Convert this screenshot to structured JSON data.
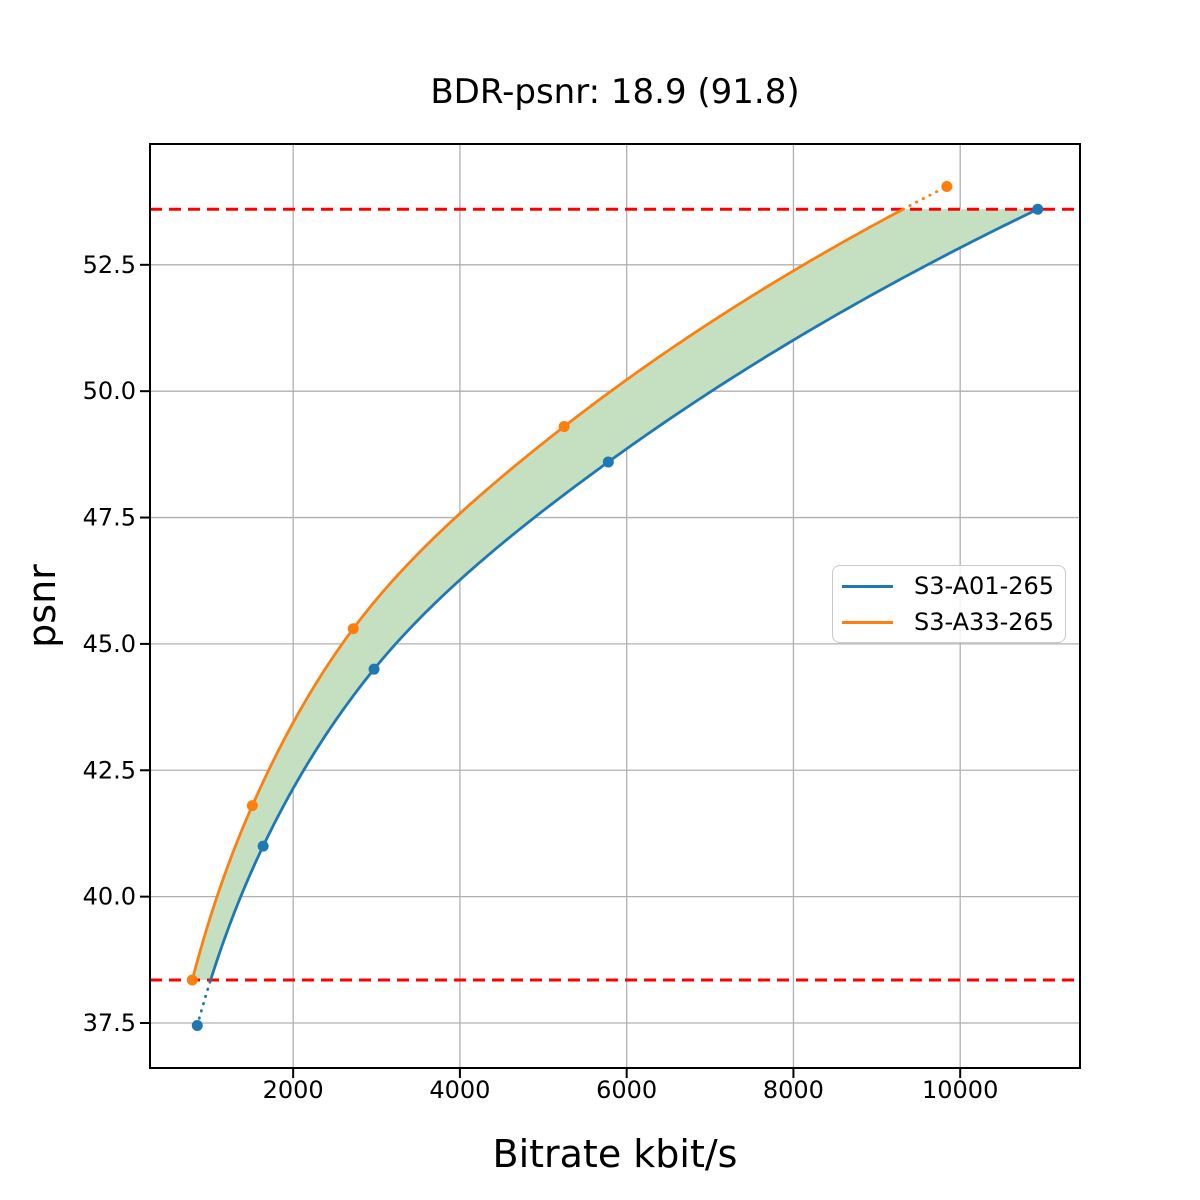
{
  "title": "BDR-psnr: 18.9 (91.8)",
  "chart_data": {
    "type": "line",
    "title": "BDR-psnr: 18.9 (91.8)",
    "xlabel": "Bitrate kbit/s",
    "ylabel": "psnr",
    "xlim": [
      283,
      11437
    ],
    "ylim": [
      36.61,
      54.89
    ],
    "grid": true,
    "grid_color": "#b0b0b0",
    "background": "#ffffff",
    "interpolation": "pchip-log-x",
    "xticks": {
      "values": [
        2000,
        4000,
        6000,
        8000,
        10000
      ],
      "labels": [
        "2000",
        "4000",
        "6000",
        "8000",
        "10000"
      ]
    },
    "yticks": {
      "values": [
        37.5,
        40.0,
        42.5,
        45.0,
        47.5,
        50.0,
        52.5
      ],
      "labels": [
        "37.5",
        "40.0",
        "42.5",
        "45.0",
        "47.5",
        "50.0",
        "52.5"
      ]
    },
    "series": [
      {
        "name": "S3-A01-265",
        "color": "#1f77b4",
        "marker": "circle",
        "x": [
          850,
          1640,
          2970,
          5780,
          10930
        ],
        "y": [
          37.45,
          41.0,
          44.5,
          48.6,
          53.6
        ]
      },
      {
        "name": "S3-A33-265",
        "color": "#ff7f0e",
        "marker": "circle",
        "x": [
          790,
          1510,
          2720,
          5250,
          9840
        ],
        "y": [
          38.35,
          41.8,
          45.3,
          49.3,
          54.05
        ]
      }
    ],
    "overlap_region": {
      "lower_psnr": 38.35,
      "upper_psnr": 53.6,
      "line_color": "#ff0000",
      "line_style": "dashed",
      "fill_color": "#c5e0c0"
    },
    "legend": {
      "position": "center-right",
      "entries": [
        "S3-A01-265",
        "S3-A33-265"
      ]
    }
  }
}
